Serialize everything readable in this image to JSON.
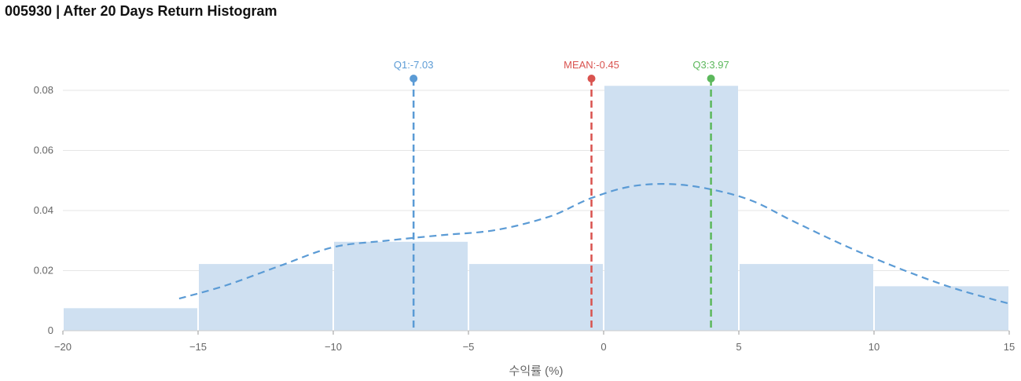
{
  "title": "005930 | After 20 Days Return Histogram",
  "chart_data": {
    "type": "bar",
    "subtype": "histogram",
    "title": "005930 | After 20 Days Return Histogram",
    "xlabel": "수익률 (%)",
    "ylabel": "",
    "xlim": [
      -20,
      15
    ],
    "ylim": [
      0,
      0.085
    ],
    "grid": true,
    "bar_color": "#cfe0f1",
    "kde_color": "#5b9bd5",
    "bins": [
      {
        "x0": -20,
        "x1": -15,
        "density": 0.0075
      },
      {
        "x0": -15,
        "x1": -10,
        "density": 0.0222
      },
      {
        "x0": -10,
        "x1": -5,
        "density": 0.0296
      },
      {
        "x0": -5,
        "x1": 0,
        "density": 0.0222
      },
      {
        "x0": 0,
        "x1": 5,
        "density": 0.0815
      },
      {
        "x0": 5,
        "x1": 10,
        "density": 0.0222
      },
      {
        "x0": 10,
        "x1": 15,
        "density": 0.0148
      }
    ],
    "density_curve": {
      "name": "KDE",
      "x": [
        -15.7,
        -14,
        -12,
        -10,
        -8,
        -6,
        -4,
        -2,
        -0.5,
        1,
        2.5,
        4,
        5.5,
        7,
        9,
        11,
        13,
        15
      ],
      "y": [
        0.0107,
        0.015,
        0.0215,
        0.0278,
        0.03,
        0.0318,
        0.0335,
        0.038,
        0.044,
        0.048,
        0.0488,
        0.047,
        0.0432,
        0.0365,
        0.028,
        0.0205,
        0.014,
        0.009
      ]
    },
    "x_ticks": [
      -20,
      -15,
      -10,
      -5,
      0,
      5,
      10,
      15
    ],
    "x_tick_labels": [
      "−20",
      "−15",
      "−10",
      "−5",
      "0",
      "5",
      "10",
      "15"
    ],
    "y_ticks": [
      0,
      0.02,
      0.04,
      0.06,
      0.08
    ],
    "y_tick_labels": [
      "0",
      "0.02",
      "0.04",
      "0.06",
      "0.08"
    ],
    "markers": [
      {
        "label": "Q1:-7.03",
        "x": -7.03,
        "color": "#5b9bd5"
      },
      {
        "label": "MEAN:-0.45",
        "x": -0.45,
        "color": "#d9534f"
      },
      {
        "label": "Q3:3.97",
        "x": 3.97,
        "color": "#5cb85c"
      }
    ]
  }
}
